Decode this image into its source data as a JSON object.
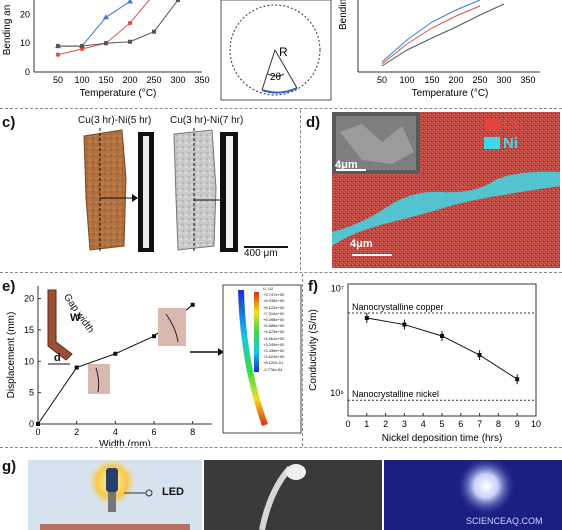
{
  "panels": {
    "a": {
      "chart_data": {
        "type": "line",
        "xlabel": "Temperature (°C)",
        "ylabel": "Bending an",
        "x_ticks": [
          "50",
          "100",
          "150",
          "200",
          "250",
          "300",
          "350"
        ],
        "xlim": [
          0,
          350
        ],
        "y_ticks": [
          "0",
          "10",
          "20"
        ],
        "series": [
          {
            "color": "#3a7bd5",
            "marker": "triangle",
            "points": [
              [
                50,
                9
              ],
              [
                100,
                9
              ],
              [
                150,
                19
              ],
              [
                200,
                24.5
              ]
            ]
          },
          {
            "color": "#e0504a",
            "marker": "circle",
            "points": [
              [
                50,
                6
              ],
              [
                100,
                8
              ],
              [
                150,
                10
              ],
              [
                200,
                17
              ],
              [
                250,
                27
              ]
            ]
          },
          {
            "color": "#555555",
            "marker": "square",
            "points": [
              [
                50,
                9
              ],
              [
                100,
                9
              ],
              [
                150,
                10
              ],
              [
                200,
                10.5
              ],
              [
                250,
                14
              ],
              [
                300,
                25
              ]
            ]
          }
        ]
      }
    },
    "b": {
      "radius_label": "R",
      "angle_label": "2θ"
    },
    "c": {
      "letter": "c)",
      "label_left": "Cu(3 hr)-Ni(5 hr)",
      "label_right": "Cu(3 hr)-Ni(7 hr)",
      "scale_bar": "400 μm"
    },
    "d": {
      "letter": "d)",
      "legend_cu": "Cu",
      "legend_ni": "Ni",
      "scale_inset": "4μm",
      "scale_main": "4μm",
      "colors": {
        "cu": "#e0453e",
        "ni": "#3fd8e8"
      }
    },
    "e": {
      "letter": "e)",
      "gap_width_label": "Gap width",
      "w_label": "W",
      "d_label": "d",
      "legend_title": "U, U2",
      "legend_values": [
        "+9.747e+00",
        "+8.935e+00",
        "+8.122e+00",
        "+7.310e+00",
        "+6.498e+00",
        "+5.686e+00",
        "+4.873e+00",
        "+4.061e+00",
        "+3.249e+00",
        "+2.436e+00",
        "+1.624e+00",
        "+8.122e-01",
        "-2.776e-04"
      ],
      "chart_data": {
        "type": "line",
        "xlabel": "Width (mm)",
        "ylabel": "Displacement (mm)",
        "x_ticks": [
          "0",
          "2",
          "4",
          "6",
          "8"
        ],
        "y_ticks": [
          "0",
          "5",
          "10",
          "15",
          "20"
        ],
        "xlim": [
          0,
          9
        ],
        "ylim": [
          0,
          22
        ],
        "x": [
          0,
          2,
          4,
          6,
          8
        ],
        "y": [
          0,
          9,
          11.2,
          14,
          19
        ]
      }
    },
    "f": {
      "letter": "f)",
      "label_copper": "Nanocrystalline copper",
      "label_nickel": "Nanocrystalline nickel",
      "chart_data": {
        "type": "line",
        "scale_y": "log",
        "xlabel": "Nickel deposition time (hrs)",
        "ylabel": "Conductivity (S/m)",
        "x_ticks": [
          "0",
          "1",
          "2",
          "3",
          "4",
          "5",
          "6",
          "7",
          "8",
          "9",
          "10"
        ],
        "y_ticks": [
          "10⁶",
          "10⁷"
        ],
        "xlim": [
          0,
          10
        ],
        "x": [
          1,
          3,
          5,
          7,
          9
        ],
        "y": [
          5200000,
          4500000,
          3500000,
          2300000,
          1350000
        ],
        "ref_copper": 5800000,
        "ref_nickel": 850000
      }
    },
    "g": {
      "letter": "g)",
      "led_label": "LED",
      "watermark": "SCIENCEAQ.COM"
    },
    "c_letter": "c)",
    "e_letter": "e)"
  }
}
